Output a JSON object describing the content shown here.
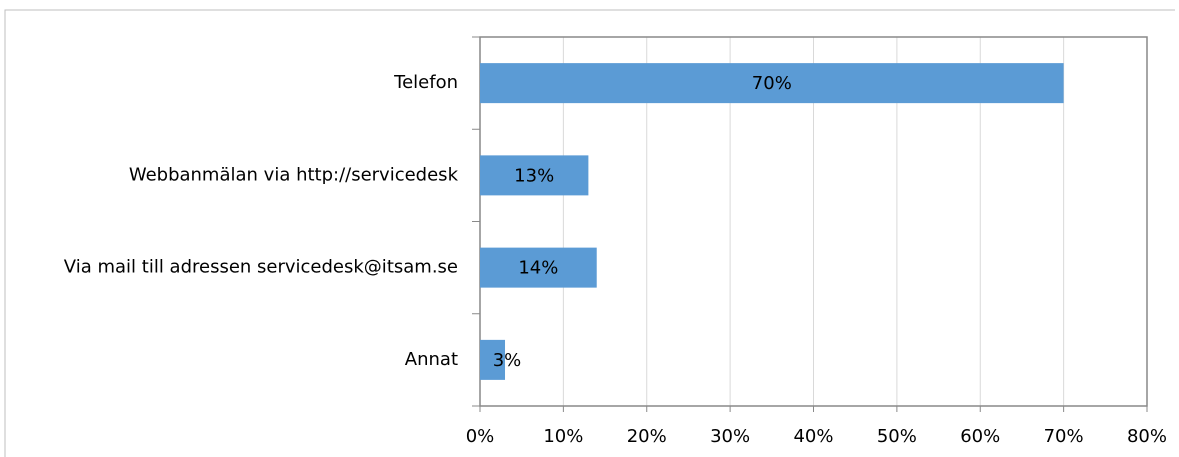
{
  "chart_data": {
    "type": "bar",
    "orientation": "horizontal",
    "categories": [
      "Telefon",
      "Webbanmälan via http://servicedesk",
      "Via mail till adressen servicedesk@itsam.se",
      "Annat"
    ],
    "values": [
      70,
      13,
      14,
      3
    ],
    "value_labels": [
      "70%",
      "13%",
      "14%",
      "3%"
    ],
    "color": "#5b9bd5",
    "xlim": [
      0,
      80
    ],
    "xticks": [
      {
        "value": 0,
        "label": "0%"
      },
      {
        "value": 10,
        "label": "10%"
      },
      {
        "value": 20,
        "label": "20%"
      },
      {
        "value": 30,
        "label": "30%"
      },
      {
        "value": 40,
        "label": "40%"
      },
      {
        "value": 50,
        "label": "50%"
      },
      {
        "value": 60,
        "label": "60%"
      },
      {
        "value": 70,
        "label": "70%"
      },
      {
        "value": 80,
        "label": "80%"
      }
    ],
    "grid": true
  }
}
